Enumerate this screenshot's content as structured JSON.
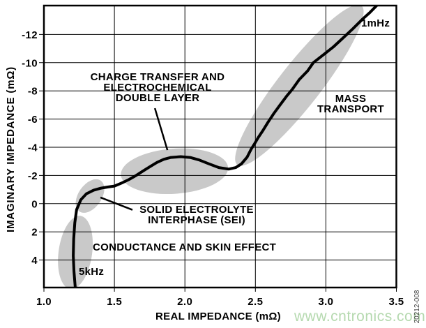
{
  "watermark": {
    "text": "www.cntronics.com",
    "color": "#b5d9af"
  },
  "figure_code": "20212-008",
  "chart_data": {
    "type": "line",
    "title": "",
    "xlabel": "REAL IMPEDANCE (mΩ)",
    "ylabel": "IMAGINARY IMPEDANCE (mΩ)",
    "xlim": [
      1.0,
      3.5
    ],
    "ylim": [
      -14.05,
      5.95
    ],
    "y_axis_inverted_negative_up": true,
    "grid": true,
    "x_ticks": [
      "1.0",
      "1.5",
      "2.0",
      "2.5",
      "3.0",
      "3.5"
    ],
    "x_tick_values": [
      1.0,
      1.5,
      2.0,
      2.5,
      3.0,
      3.5
    ],
    "y_ticks": [
      "-12",
      "-10",
      "-8",
      "-6",
      "-4",
      "-2",
      "0",
      "2",
      "4"
    ],
    "y_tick_values": [
      -12,
      -10,
      -8,
      -6,
      -4,
      -2,
      0,
      2,
      4
    ],
    "line_color": "#000000",
    "line_width": 4,
    "region_color": "#c9c9c9",
    "series": [
      {
        "name": "battery-impedance",
        "points": [
          [
            1.222,
            5.93
          ],
          [
            1.213,
            4.8
          ],
          [
            1.208,
            3.7
          ],
          [
            1.211,
            2.5
          ],
          [
            1.219,
            1.35
          ],
          [
            1.232,
            0.42
          ],
          [
            1.262,
            -0.28
          ],
          [
            1.301,
            -0.7
          ],
          [
            1.352,
            -0.95
          ],
          [
            1.405,
            -1.1
          ],
          [
            1.452,
            -1.18
          ],
          [
            1.5,
            -1.25
          ],
          [
            1.551,
            -1.46
          ],
          [
            1.601,
            -1.7
          ],
          [
            1.651,
            -1.98
          ],
          [
            1.701,
            -2.3
          ],
          [
            1.751,
            -2.62
          ],
          [
            1.801,
            -2.92
          ],
          [
            1.851,
            -3.15
          ],
          [
            1.901,
            -3.28
          ],
          [
            1.971,
            -3.33
          ],
          [
            2.041,
            -3.27
          ],
          [
            2.101,
            -3.1
          ],
          [
            2.171,
            -2.82
          ],
          [
            2.241,
            -2.56
          ],
          [
            2.311,
            -2.45
          ],
          [
            2.361,
            -2.56
          ],
          [
            2.401,
            -2.82
          ],
          [
            2.441,
            -3.3
          ],
          [
            2.471,
            -3.88
          ],
          [
            2.491,
            -4.2
          ],
          [
            2.521,
            -4.7
          ],
          [
            2.551,
            -5.15
          ],
          [
            2.591,
            -5.8
          ],
          [
            2.631,
            -6.4
          ],
          [
            2.671,
            -6.95
          ],
          [
            2.721,
            -7.62
          ],
          [
            2.761,
            -8.1
          ],
          [
            2.811,
            -8.8
          ],
          [
            2.871,
            -9.42
          ],
          [
            2.911,
            -10.0
          ],
          [
            2.981,
            -10.55
          ],
          [
            3.051,
            -11.1
          ],
          [
            3.121,
            -11.75
          ],
          [
            3.191,
            -12.4
          ],
          [
            3.261,
            -13.1
          ],
          [
            3.311,
            -13.55
          ],
          [
            3.361,
            -14.06
          ]
        ]
      }
    ],
    "regions": [
      {
        "name": "conductance-skin-effect",
        "cx": 1.223,
        "cy": 3.46,
        "rx": 0.119,
        "ry": 2.62,
        "rot": 8
      },
      {
        "name": "sei",
        "cx": 1.327,
        "cy": -0.54,
        "rx": 0.082,
        "ry": 1.33,
        "rot": 35
      },
      {
        "name": "charge-transfer",
        "cx": 1.926,
        "cy": -2.3,
        "rx": 0.381,
        "ry": 1.6,
        "rot": -4
      },
      {
        "name": "mass-transport",
        "cx": 2.812,
        "cy": -8.4,
        "rx": 0.149,
        "ry": 7.16,
        "rot": 38
      }
    ],
    "callouts": [
      {
        "name": "charge-transfer-pointer",
        "x1": 1.787,
        "y1": -6.77,
        "x2": 1.876,
        "y2": -3.8
      },
      {
        "name": "sei-pointer",
        "x1": 1.628,
        "y1": 0.44,
        "x2": 1.401,
        "y2": -0.44
      }
    ],
    "annotations": [
      {
        "name": "charge-transfer-label",
        "text": "CHARGE TRANSFER AND\nELECTROCHEMICAL\nDOUBLE LAYER"
      },
      {
        "name": "mass-transport-label",
        "text": "MASS\nTRANSPORT"
      },
      {
        "name": "sei-label",
        "text": "SOLID ELECTROLYTE\nINTERPHASE (SEI)"
      },
      {
        "name": "conductance-label",
        "text": "CONDUCTANCE AND SKIN EFFECT"
      },
      {
        "name": "freq-1mhz-label",
        "text": "1mHz"
      },
      {
        "name": "freq-5khz-label",
        "text": "5kHz"
      }
    ]
  }
}
